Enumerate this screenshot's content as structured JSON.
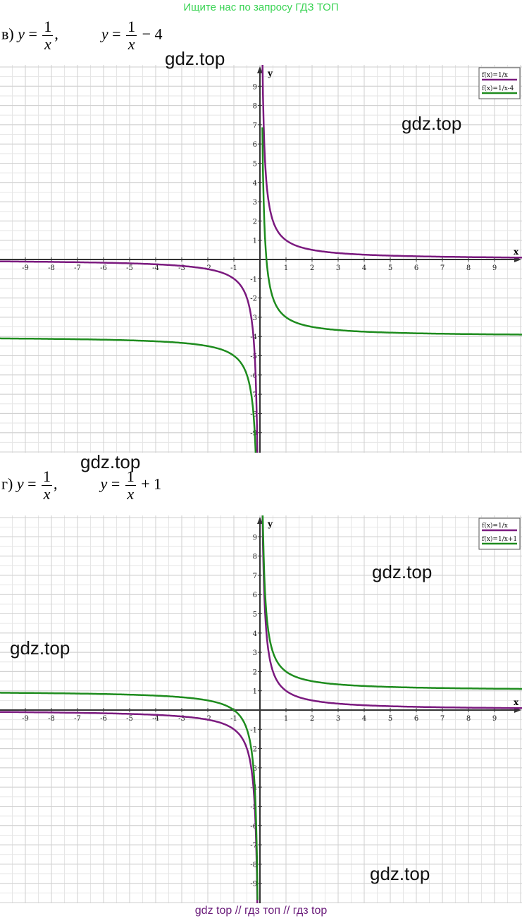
{
  "banner": "Ищите нас по запросу ГДЗ ТОП",
  "footer": "gdz top  //  гдз топ  //  гдз top",
  "watermark": "gdz.top",
  "colors": {
    "purple": "#7b1a7f",
    "green": "#1e8c1e",
    "banner": "#39d353"
  },
  "formulas": {
    "v": {
      "label": "в)",
      "lhs": "y",
      "eq": "=",
      "num": "1",
      "den": "x",
      "sep": ",",
      "rhs_tail": "− 4"
    },
    "g": {
      "label": "г)",
      "lhs": "y",
      "eq": "=",
      "num": "1",
      "den": "x",
      "sep": ",",
      "rhs_tail": "+ 1"
    }
  },
  "chart_data": [
    {
      "type": "line",
      "xlabel": "x",
      "ylabel": "y",
      "xlim": [
        -10,
        10
      ],
      "ylim": [
        -10,
        10
      ],
      "xticks": [
        -9,
        -8,
        -7,
        -6,
        -5,
        -4,
        -3,
        -2,
        -1,
        1,
        2,
        3,
        4,
        5,
        6,
        7,
        8,
        9
      ],
      "yticks": [
        -9,
        -8,
        -7,
        -6,
        -5,
        -4,
        -3,
        -2,
        -1,
        1,
        2,
        3,
        4,
        5,
        6,
        7,
        8,
        9
      ],
      "grid": true,
      "legend": "top-right",
      "series": [
        {
          "name": "f(x)=1/x",
          "color": "#7b1a7f",
          "shift": 0
        },
        {
          "name": "f(x)=1/x-4",
          "color": "#1e8c1e",
          "shift": -4
        }
      ]
    },
    {
      "type": "line",
      "xlabel": "x",
      "ylabel": "y",
      "xlim": [
        -10,
        10
      ],
      "ylim": [
        -10,
        10
      ],
      "xticks": [
        -9,
        -8,
        -7,
        -6,
        -5,
        -4,
        -3,
        -2,
        -1,
        1,
        2,
        3,
        4,
        5,
        6,
        7,
        8,
        9
      ],
      "yticks": [
        -9,
        -8,
        -7,
        -6,
        -5,
        -4,
        -3,
        -2,
        -1,
        1,
        2,
        3,
        4,
        5,
        6,
        7,
        8,
        9
      ],
      "grid": true,
      "legend": "top-right",
      "series": [
        {
          "name": "f(x)=1/x",
          "color": "#7b1a7f",
          "shift": 0
        },
        {
          "name": "f(x)=1/x+1",
          "color": "#1e8c1e",
          "shift": 1
        }
      ]
    }
  ]
}
